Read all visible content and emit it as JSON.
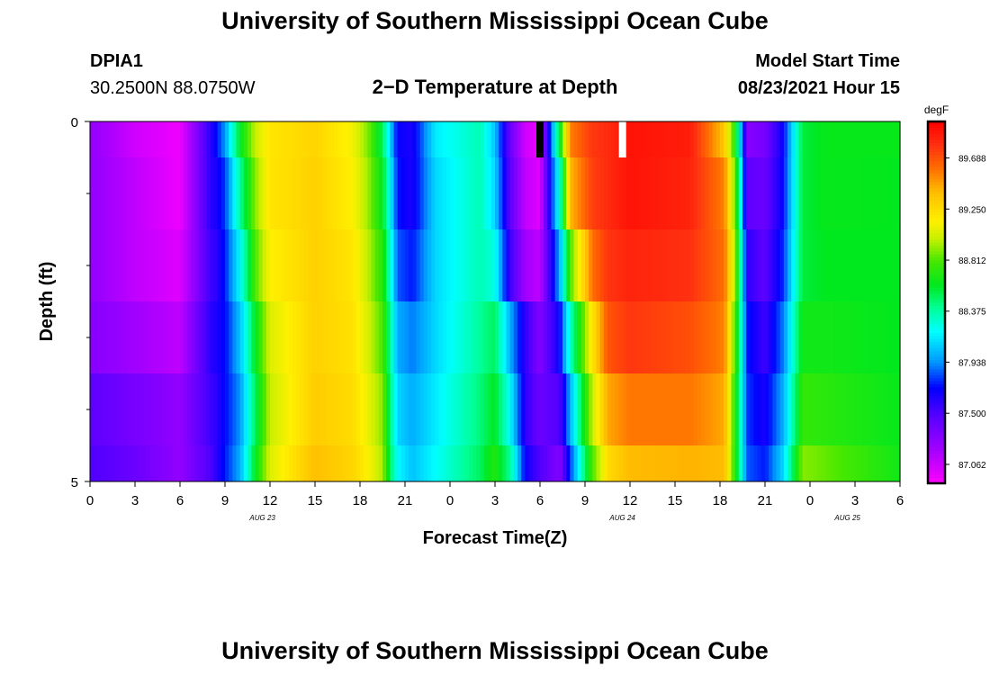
{
  "page_title": "University of Southern Mississippi Ocean Cube",
  "footer_title": "University of Southern Mississippi Ocean Cube",
  "station": {
    "id": "DPIA1",
    "coords": "30.2500N  88.0750W"
  },
  "plot_title": "2−D Temperature at Depth",
  "model_start": {
    "label": "Model Start Time",
    "value": "08/23/2021 Hour 15"
  },
  "chart_data": {
    "type": "heatmap",
    "title": "2−D Temperature at Depth",
    "xlabel": "Forecast Time(Z)",
    "ylabel": "Depth (ft)",
    "x_tick_labels": [
      "0",
      "3",
      "6",
      "9",
      "12",
      "15",
      "18",
      "21",
      "0",
      "3",
      "6",
      "9",
      "12",
      "15",
      "18",
      "21",
      "0",
      "3",
      "6"
    ],
    "date_labels": [
      {
        "text": "AUG  23",
        "hour": 11.5
      },
      {
        "text": "AUG  24",
        "hour": 35.5
      },
      {
        "text": "AUG  25",
        "hour": 50.5
      }
    ],
    "xlim_hours": [
      0,
      54
    ],
    "ylim": [
      0,
      5
    ],
    "y_tick_labels": [
      "0",
      "5"
    ],
    "y_minor_ticks": [
      1,
      2,
      3,
      4
    ],
    "colorbar": {
      "unit": "degF",
      "tick_labels": [
        "87.062",
        "87.500",
        "87.938",
        "88.375",
        "88.812",
        "89.250",
        "89.688"
      ],
      "tick_values": [
        87.062,
        87.5,
        87.938,
        88.375,
        88.812,
        89.25,
        89.688
      ],
      "range": [
        86.9,
        90.0
      ]
    },
    "colormap": [
      {
        "v": 86.9,
        "c": "#ff00ff"
      },
      {
        "v": 87.2,
        "c": "#a000ff"
      },
      {
        "v": 87.5,
        "c": "#5000ff"
      },
      {
        "v": 87.72,
        "c": "#0000ff"
      },
      {
        "v": 87.94,
        "c": "#0096ff"
      },
      {
        "v": 88.2,
        "c": "#00ffff"
      },
      {
        "v": 88.4,
        "c": "#00ff9a"
      },
      {
        "v": 88.6,
        "c": "#00e81e"
      },
      {
        "v": 88.81,
        "c": "#48e800"
      },
      {
        "v": 89.0,
        "c": "#c8f000"
      },
      {
        "v": 89.15,
        "c": "#fff000"
      },
      {
        "v": 89.4,
        "c": "#ffbc00"
      },
      {
        "v": 89.6,
        "c": "#ff6e00"
      },
      {
        "v": 89.8,
        "c": "#ff3010"
      },
      {
        "v": 90.0,
        "c": "#ff0000"
      }
    ],
    "depth_rows": [
      0,
      1,
      2,
      3,
      4,
      5
    ],
    "time_keypoints": [
      [
        0,
        87.25,
        87.25,
        87.25,
        87.3,
        87.45,
        87.5
      ],
      [
        3,
        87.05,
        87.1,
        87.1,
        87.2,
        87.35,
        87.4
      ],
      [
        6,
        86.95,
        86.95,
        87.0,
        87.1,
        87.25,
        87.25
      ],
      [
        8,
        87.6,
        87.6,
        87.55,
        87.6,
        87.55,
        87.5
      ],
      [
        8.4,
        87.72,
        87.65,
        87.6,
        87.65,
        87.6,
        87.6
      ],
      [
        9,
        87.95,
        87.8,
        87.75,
        87.72,
        87.72,
        87.75
      ],
      [
        10,
        88.6,
        88.4,
        88.2,
        88.05,
        87.95,
        88.0
      ],
      [
        11,
        89.0,
        88.9,
        88.8,
        88.6,
        88.5,
        88.6
      ],
      [
        12,
        89.2,
        89.2,
        89.15,
        89.05,
        89.0,
        89.05
      ],
      [
        15,
        89.28,
        89.3,
        89.3,
        89.3,
        89.32,
        89.38
      ],
      [
        17.5,
        89.12,
        89.15,
        89.2,
        89.22,
        89.25,
        89.28
      ],
      [
        18.5,
        88.9,
        88.95,
        89.0,
        89.05,
        89.1,
        89.15
      ],
      [
        19.5,
        88.5,
        88.6,
        88.7,
        88.8,
        88.9,
        88.95
      ],
      [
        20.0,
        88.1,
        88.2,
        88.3,
        88.4,
        88.45,
        88.5
      ],
      [
        20.5,
        87.7,
        87.75,
        87.85,
        88.0,
        88.1,
        88.2
      ],
      [
        21.5,
        87.65,
        87.65,
        87.75,
        87.9,
        88.0,
        88.05
      ],
      [
        23,
        88.15,
        88.1,
        88.1,
        88.1,
        88.15,
        88.2
      ],
      [
        26,
        88.35,
        88.35,
        88.35,
        88.4,
        88.45,
        88.5
      ],
      [
        27,
        88.05,
        88.1,
        88.25,
        88.5,
        88.6,
        88.7
      ],
      [
        28,
        87.4,
        87.45,
        87.55,
        88.0,
        88.2,
        88.4
      ],
      [
        29,
        87.05,
        87.1,
        87.2,
        87.6,
        87.6,
        87.7
      ],
      [
        30,
        86.95,
        87.0,
        87.1,
        87.3,
        87.4,
        87.5
      ],
      [
        31.3,
        88.6,
        88.3,
        88.0,
        87.7,
        87.5,
        87.3
      ],
      [
        32,
        89.55,
        89.4,
        88.8,
        88.3,
        88.0,
        87.8
      ],
      [
        33.5,
        89.78,
        89.75,
        89.6,
        89.2,
        89.0,
        88.8
      ],
      [
        34.5,
        89.82,
        89.82,
        89.78,
        89.68,
        89.45,
        89.25
      ],
      [
        36,
        89.92,
        89.92,
        89.85,
        89.78,
        89.58,
        89.4
      ],
      [
        40,
        89.88,
        89.85,
        89.8,
        89.7,
        89.58,
        89.42
      ],
      [
        42.3,
        89.35,
        89.55,
        89.6,
        89.55,
        89.45,
        89.4
      ],
      [
        43,
        88.7,
        88.85,
        88.95,
        88.8,
        88.7,
        88.7
      ],
      [
        43.8,
        87.3,
        87.45,
        87.6,
        87.75,
        87.8,
        87.85
      ],
      [
        45,
        87.35,
        87.4,
        87.45,
        87.55,
        87.65,
        87.75
      ],
      [
        46.2,
        87.7,
        87.72,
        87.78,
        87.9,
        88.0,
        88.1
      ],
      [
        47.5,
        88.55,
        88.55,
        88.55,
        88.65,
        88.75,
        88.9
      ],
      [
        49,
        88.62,
        88.62,
        88.6,
        88.65,
        88.72,
        88.85
      ],
      [
        54,
        88.62,
        88.6,
        88.6,
        88.6,
        88.62,
        88.65
      ]
    ],
    "markers": [
      {
        "hour": 30,
        "depth_range": [
          0,
          0.5
        ],
        "color": "#000000"
      },
      {
        "hour": 35.5,
        "depth_range": [
          0,
          0.5
        ],
        "color": "#ffffff"
      }
    ]
  }
}
